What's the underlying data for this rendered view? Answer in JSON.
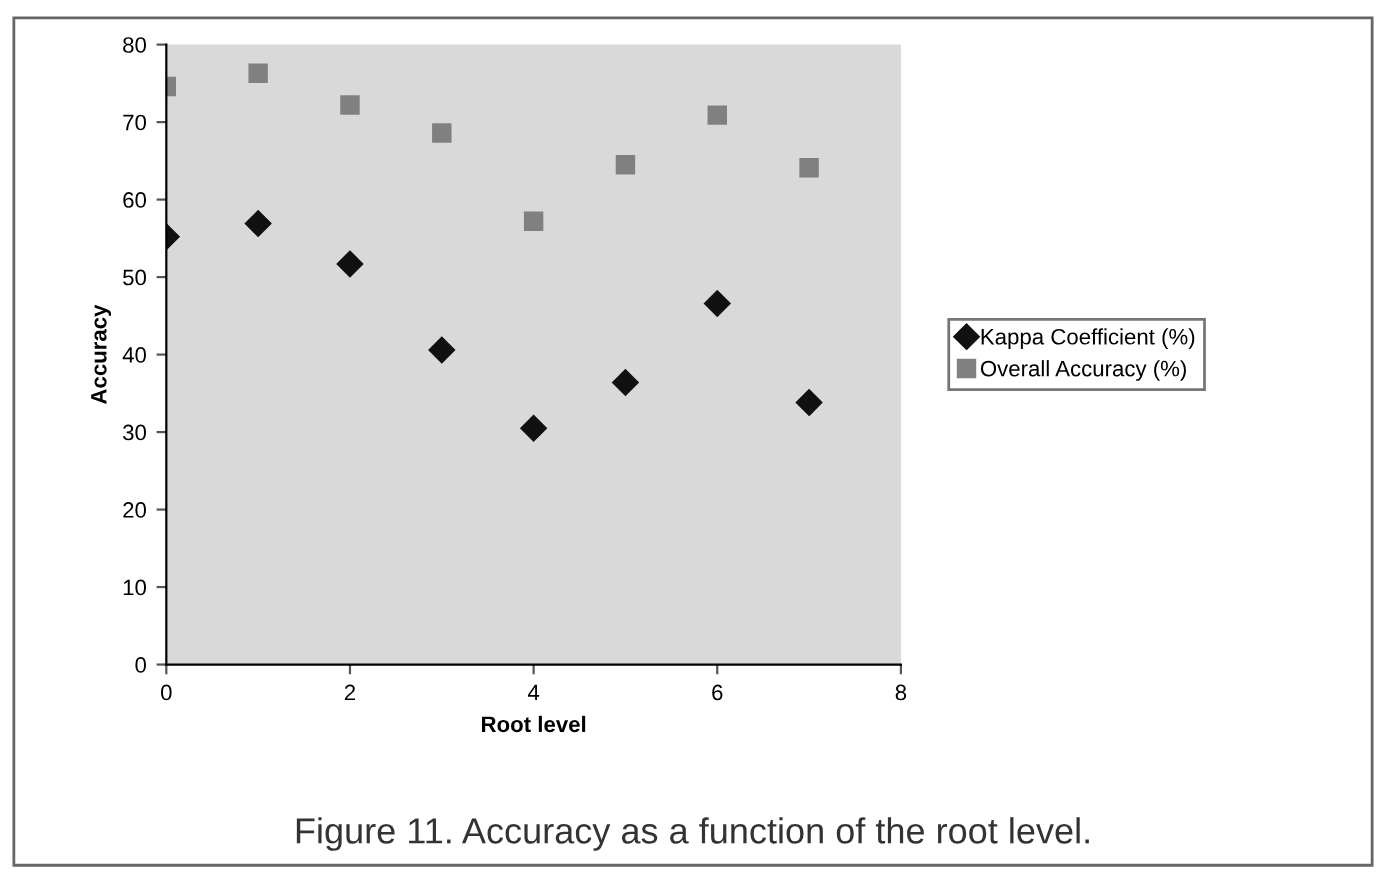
{
  "chart_data": {
    "type": "scatter",
    "xlabel": "Root level",
    "ylabel": "Accuracy",
    "x": [
      0,
      1,
      2,
      3,
      4,
      5,
      6,
      7
    ],
    "series": [
      {
        "name": "Kappa Coefficient (%)",
        "color": "#111111",
        "marker": "diamond",
        "values": [
          55.2,
          56.9,
          51.7,
          40.6,
          30.5,
          36.4,
          46.6,
          33.8
        ]
      },
      {
        "name": "Overall Accuracy (%)",
        "color": "#808080",
        "marker": "square",
        "values": [
          74.6,
          76.3,
          72.2,
          68.6,
          57.2,
          64.5,
          70.9,
          64.1
        ]
      }
    ],
    "xlim": [
      0,
      8
    ],
    "xticks": [
      0,
      2,
      4,
      6,
      8
    ],
    "ylim": [
      0,
      80
    ],
    "yticks": [
      0,
      10,
      20,
      30,
      40,
      50,
      60,
      70,
      80
    ],
    "grid": false,
    "legend": "right",
    "annotations": [
      "Figure 11. Accuracy as a function of the root level."
    ]
  }
}
